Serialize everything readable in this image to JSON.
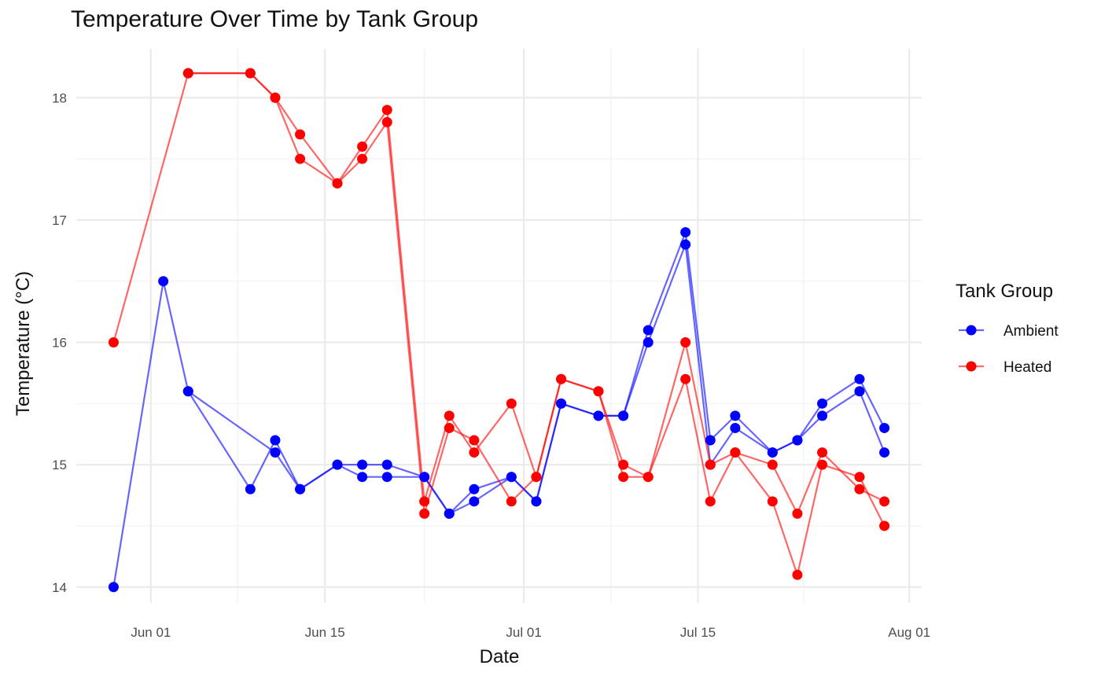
{
  "chart_data": {
    "type": "line",
    "title": "Temperature Over Time by Tank Group",
    "xlabel": "Date",
    "ylabel": "Temperature (°C)",
    "x_type": "date",
    "xlim": [
      "2024-05-26",
      "2024-08-02"
    ],
    "ylim": [
      13.87,
      18.4
    ],
    "x_ticks": [
      {
        "date": "2024-06-01",
        "label": "Jun 01"
      },
      {
        "date": "2024-06-15",
        "label": "Jun 15"
      },
      {
        "date": "2024-07-01",
        "label": "Jul 01"
      },
      {
        "date": "2024-07-15",
        "label": "Jul 15"
      },
      {
        "date": "2024-08-01",
        "label": "Aug 01"
      }
    ],
    "y_ticks": [
      14,
      15,
      16,
      17,
      18
    ],
    "grid": true,
    "legend": {
      "title": "Tank Group",
      "position": "right"
    },
    "series": [
      {
        "name": "Ambient",
        "color": "#0000ff",
        "lines": [
          [
            [
              "2024-05-29",
              14.0
            ],
            [
              "2024-06-02",
              16.5
            ],
            [
              "2024-06-04",
              15.6
            ],
            [
              "2024-06-11",
              15.1
            ],
            [
              "2024-06-13",
              14.8
            ],
            [
              "2024-06-16",
              15.0
            ],
            [
              "2024-06-18",
              14.9
            ],
            [
              "2024-06-20",
              14.9
            ],
            [
              "2024-06-23",
              14.9
            ],
            [
              "2024-06-25",
              14.6
            ],
            [
              "2024-06-27",
              14.7
            ],
            [
              "2024-06-30",
              14.9
            ],
            [
              "2024-07-02",
              14.7
            ],
            [
              "2024-07-04",
              15.5
            ],
            [
              "2024-07-07",
              15.4
            ],
            [
              "2024-07-09",
              15.4
            ],
            [
              "2024-07-11",
              16.0
            ],
            [
              "2024-07-14",
              16.8
            ],
            [
              "2024-07-16",
              15.0
            ],
            [
              "2024-07-18",
              15.3
            ],
            [
              "2024-07-21",
              15.1
            ],
            [
              "2024-07-23",
              15.2
            ],
            [
              "2024-07-25",
              15.4
            ],
            [
              "2024-07-28",
              15.6
            ],
            [
              "2024-07-30",
              15.1
            ]
          ],
          [
            [
              "2024-06-04",
              15.6
            ],
            [
              "2024-06-09",
              14.8
            ],
            [
              "2024-06-11",
              15.2
            ],
            [
              "2024-06-13",
              14.8
            ],
            [
              "2024-06-16",
              15.0
            ],
            [
              "2024-06-18",
              15.0
            ],
            [
              "2024-06-20",
              15.0
            ],
            [
              "2024-06-23",
              14.9
            ],
            [
              "2024-06-25",
              14.6
            ],
            [
              "2024-06-27",
              14.8
            ],
            [
              "2024-06-30",
              14.9
            ],
            [
              "2024-07-02",
              14.7
            ],
            [
              "2024-07-04",
              15.5
            ],
            [
              "2024-07-07",
              15.4
            ],
            [
              "2024-07-09",
              15.4
            ],
            [
              "2024-07-11",
              16.1
            ],
            [
              "2024-07-14",
              16.9
            ],
            [
              "2024-07-16",
              15.2
            ],
            [
              "2024-07-18",
              15.4
            ],
            [
              "2024-07-21",
              15.1
            ],
            [
              "2024-07-23",
              15.2
            ],
            [
              "2024-07-25",
              15.5
            ],
            [
              "2024-07-28",
              15.7
            ],
            [
              "2024-07-30",
              15.3
            ]
          ]
        ]
      },
      {
        "name": "Heated",
        "color": "#ff0000",
        "lines": [
          [
            [
              "2024-05-29",
              16.0
            ],
            [
              "2024-06-04",
              18.2
            ],
            [
              "2024-06-09",
              18.2
            ],
            [
              "2024-06-11",
              18.0
            ],
            [
              "2024-06-13",
              17.5
            ],
            [
              "2024-06-16",
              17.3
            ],
            [
              "2024-06-18",
              17.5
            ],
            [
              "2024-06-20",
              17.8
            ],
            [
              "2024-06-23",
              14.6
            ],
            [
              "2024-06-25",
              15.3
            ],
            [
              "2024-06-27",
              15.2
            ],
            [
              "2024-06-30",
              14.7
            ],
            [
              "2024-07-02",
              14.9
            ],
            [
              "2024-07-04",
              15.7
            ],
            [
              "2024-07-07",
              15.6
            ],
            [
              "2024-07-09",
              14.9
            ],
            [
              "2024-07-11",
              14.9
            ],
            [
              "2024-07-14",
              15.7
            ],
            [
              "2024-07-16",
              14.7
            ],
            [
              "2024-07-18",
              15.1
            ],
            [
              "2024-07-21",
              14.7
            ],
            [
              "2024-07-23",
              14.1
            ],
            [
              "2024-07-25",
              15.0
            ],
            [
              "2024-07-28",
              14.9
            ],
            [
              "2024-07-30",
              14.5
            ]
          ],
          [
            [
              "2024-06-04",
              18.2
            ],
            [
              "2024-06-09",
              18.2
            ],
            [
              "2024-06-11",
              18.0
            ],
            [
              "2024-06-13",
              17.7
            ],
            [
              "2024-06-16",
              17.3
            ],
            [
              "2024-06-18",
              17.6
            ],
            [
              "2024-06-20",
              17.9
            ],
            [
              "2024-06-23",
              14.7
            ],
            [
              "2024-06-25",
              15.4
            ],
            [
              "2024-06-27",
              15.1
            ],
            [
              "2024-06-30",
              15.5
            ],
            [
              "2024-07-02",
              14.9
            ],
            [
              "2024-07-04",
              15.7
            ],
            [
              "2024-07-07",
              15.6
            ],
            [
              "2024-07-09",
              15.0
            ],
            [
              "2024-07-11",
              14.9
            ],
            [
              "2024-07-14",
              16.0
            ],
            [
              "2024-07-16",
              15.0
            ],
            [
              "2024-07-18",
              15.1
            ],
            [
              "2024-07-21",
              15.0
            ],
            [
              "2024-07-23",
              14.6
            ],
            [
              "2024-07-25",
              15.1
            ],
            [
              "2024-07-28",
              14.8
            ],
            [
              "2024-07-30",
              14.7
            ]
          ]
        ]
      }
    ]
  }
}
